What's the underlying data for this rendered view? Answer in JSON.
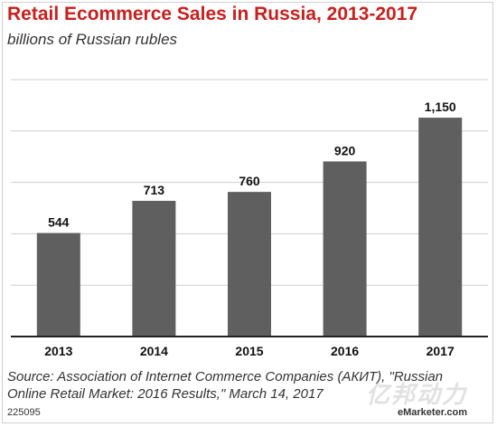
{
  "header": {
    "title": "Retail Ecommerce Sales in Russia, 2013-2017",
    "subtitle": "billions of Russian rubles"
  },
  "chart_data": {
    "type": "bar",
    "title": "Retail Ecommerce Sales in Russia, 2013-2017",
    "subtitle": "billions of Russian rubles",
    "categories": [
      "2013",
      "2014",
      "2015",
      "2016",
      "2017"
    ],
    "values": [
      544,
      713,
      760,
      920,
      1150
    ],
    "value_labels": [
      "544",
      "713",
      "760",
      "920",
      "1,150"
    ],
    "ylim": [
      0,
      1350
    ],
    "grid": true,
    "bar_color": "#5f5f5f",
    "grid_color": "#cfcfcf"
  },
  "footer": {
    "source": "Source: Association of Internet Commerce Companies (АКИТ), \"Russian Online Retail Market: 2016 Results,\" March 14, 2017",
    "chart_id": "225095",
    "brand": "eMarketer.com",
    "watermark": "亿邦动力"
  },
  "colors": {
    "title": "#c8201e",
    "text": "#333333"
  }
}
